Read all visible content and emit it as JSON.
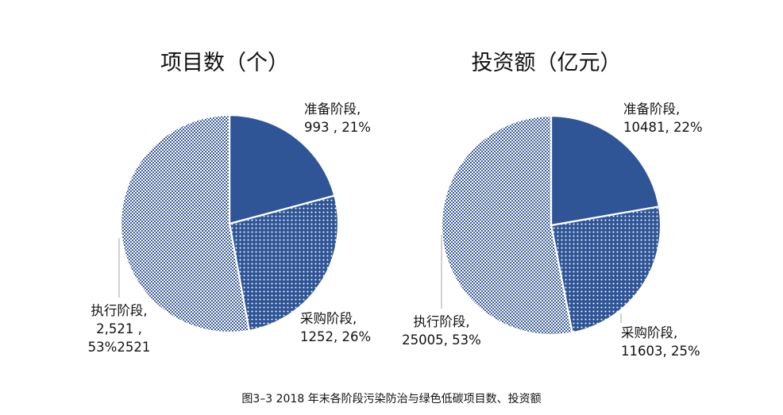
{
  "colors": {
    "solid": "#2f5597",
    "dot_base": "#2f5597",
    "check_base": "#3a5c99",
    "slice_border": "#ffffff",
    "leader": "#a6a6a6"
  },
  "caption": "图3–3  2018 年末各阶段污染防治与绿色低碳项目数、投资额",
  "chart_data": [
    {
      "type": "pie",
      "title": "项目数（个）",
      "slices": [
        {
          "category": "准备阶段",
          "value": 993,
          "percent": 21,
          "pattern": "solid",
          "label_lines": [
            "准备阶段,",
            "993 , 21%"
          ]
        },
        {
          "category": "采购阶段",
          "value": 1252,
          "percent": 26,
          "pattern": "dots",
          "label_lines": [
            "采购阶段,",
            "1252, 26%"
          ]
        },
        {
          "category": "执行阶段",
          "value": 2521,
          "percent": 53,
          "pattern": "checker",
          "label_lines": [
            "执行阶段,",
            "2,521 ,",
            "53%2521"
          ]
        }
      ]
    },
    {
      "type": "pie",
      "title": "投资额（亿元）",
      "slices": [
        {
          "category": "准备阶段",
          "value": 10481,
          "percent": 22,
          "pattern": "solid",
          "label_lines": [
            "准备阶段,",
            "10481, 22%"
          ]
        },
        {
          "category": "采购阶段",
          "value": 11603,
          "percent": 25,
          "pattern": "dots",
          "label_lines": [
            "采购阶段,",
            "11603, 25%"
          ]
        },
        {
          "category": "执行阶段",
          "value": 25005,
          "percent": 53,
          "pattern": "checker",
          "label_lines": [
            "执行阶段,",
            "25005, 53%"
          ]
        }
      ]
    }
  ]
}
